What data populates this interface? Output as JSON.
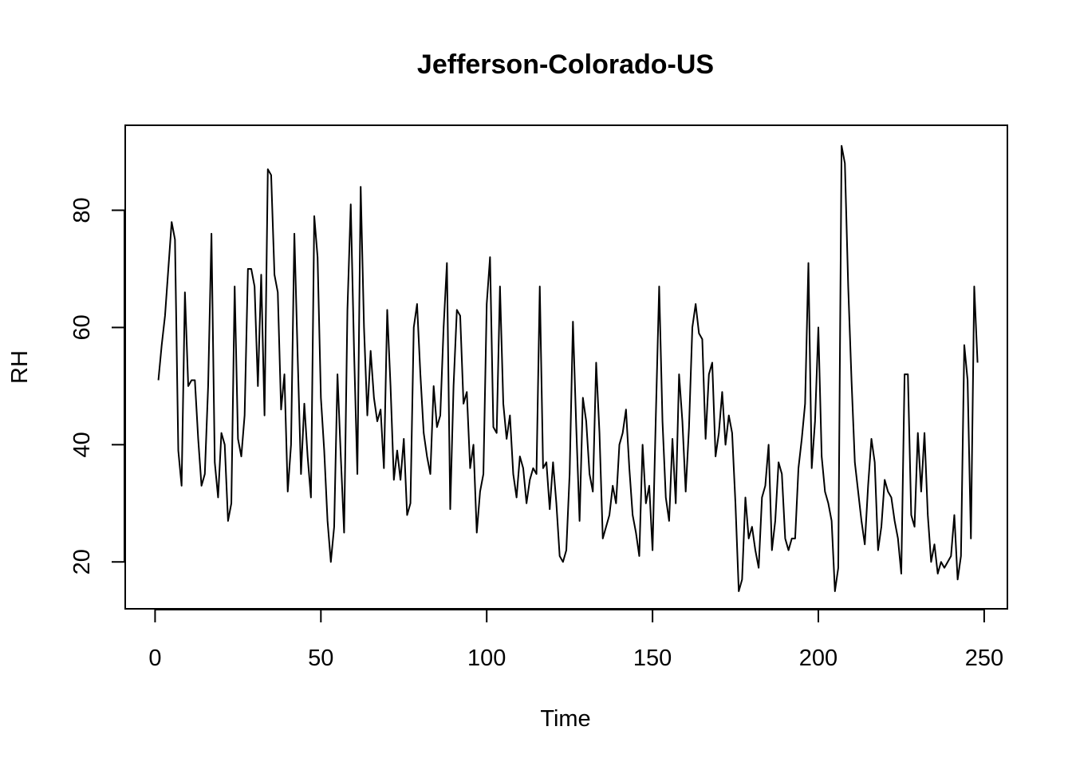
{
  "chart_data": {
    "type": "line",
    "title": "Jefferson-Colorado-US",
    "xlabel": "Time",
    "ylabel": "RH",
    "xlim": [
      -9,
      257
    ],
    "ylim": [
      12,
      94.5
    ],
    "x_ticks": [
      0,
      50,
      100,
      150,
      200,
      250
    ],
    "y_ticks": [
      20,
      40,
      60,
      80
    ],
    "grid": false,
    "series": [
      {
        "color": "#000000",
        "x_start": 1,
        "values": [
          51,
          57,
          62,
          70,
          78,
          75,
          39,
          33,
          66,
          50,
          51,
          51,
          41,
          33,
          35,
          50,
          76,
          37,
          31,
          42,
          40,
          27,
          30,
          67,
          41,
          38,
          45,
          70,
          70,
          67,
          50,
          69,
          45,
          87,
          86,
          69,
          66,
          46,
          52,
          32,
          40,
          76,
          55,
          35,
          47,
          38,
          31,
          79,
          72,
          48,
          39,
          27,
          20,
          26,
          52,
          38,
          25,
          63,
          81,
          56,
          35,
          84,
          60,
          45,
          56,
          48,
          44,
          46,
          36,
          63,
          50,
          34,
          39,
          34,
          41,
          28,
          30,
          60,
          64,
          52,
          42,
          38,
          35,
          50,
          43,
          45,
          60,
          71,
          29,
          50,
          63,
          62,
          47,
          49,
          36,
          40,
          25,
          32,
          35,
          64,
          72,
          43,
          42,
          67,
          47,
          41,
          45,
          35,
          31,
          38,
          36,
          30,
          34,
          36,
          35,
          67,
          36,
          37,
          29,
          37,
          30,
          21,
          20,
          22,
          35,
          61,
          43,
          27,
          48,
          44,
          35,
          32,
          54,
          42,
          24,
          26,
          28,
          33,
          30,
          40,
          42,
          46,
          36,
          28,
          25,
          21,
          40,
          30,
          33,
          22,
          45,
          67,
          44,
          31,
          27,
          41,
          30,
          52,
          44,
          32,
          43,
          60,
          64,
          59,
          58,
          41,
          52,
          54,
          38,
          42,
          49,
          40,
          45,
          42,
          30,
          15,
          17,
          31,
          24,
          26,
          22,
          19,
          31,
          33,
          40,
          22,
          27,
          37,
          35,
          24,
          22,
          24,
          24,
          36,
          41,
          47,
          71,
          36,
          44,
          60,
          38,
          32,
          30,
          27,
          15,
          19,
          91,
          88,
          67,
          51,
          37,
          32,
          27,
          23,
          33,
          41,
          37,
          22,
          26,
          34,
          32,
          31,
          27,
          24,
          18,
          52,
          52,
          28,
          26,
          42,
          32,
          42,
          28,
          20,
          23,
          18,
          20,
          19,
          20,
          21,
          28,
          17,
          21,
          57,
          51,
          24,
          67,
          54
        ]
      }
    ]
  }
}
